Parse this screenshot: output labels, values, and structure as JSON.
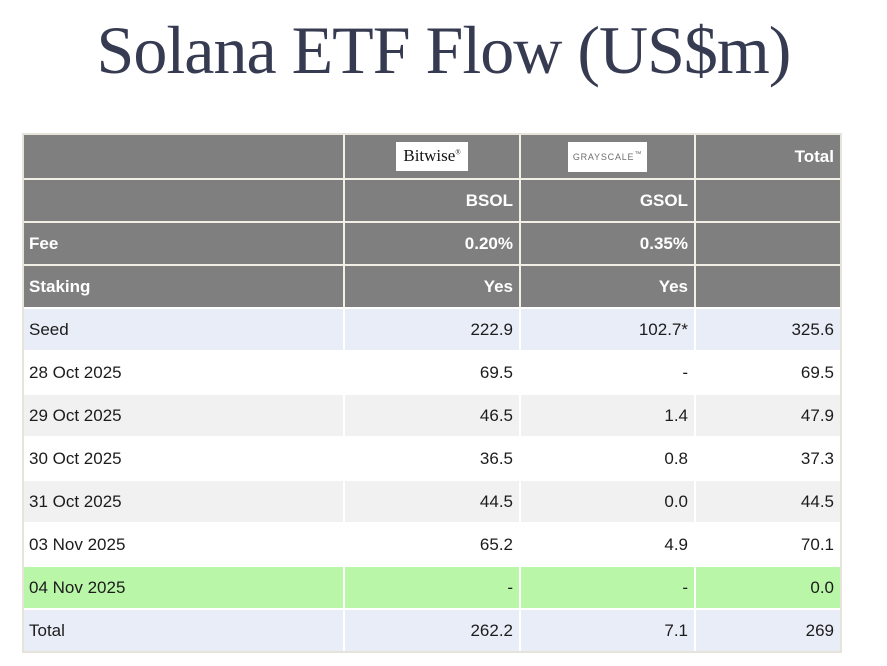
{
  "title": "Solana ETF Flow (US$m)",
  "colors": {
    "title_text": "#363b52",
    "header_bg": "#7f7f7f",
    "header_text": "#ffffff",
    "seed_total_row_bg": "#e9edf8",
    "alt_row_bg": "#f1f1f2",
    "highlight_row_bg": "#b9f6a8",
    "table_border": "#e6e3da",
    "data_text": "#1c1c1c"
  },
  "table": {
    "logos": {
      "bitwise": {
        "label": "Bitwise",
        "mark": "®"
      },
      "grayscale": {
        "label": "GRAYSCALE",
        "mark": "™"
      }
    },
    "header": {
      "total_label": "Total",
      "col2_ticker": "BSOL",
      "col3_ticker": "GSOL",
      "fee_label": "Fee",
      "fee_bsol": "0.20%",
      "fee_gsol": "0.35%",
      "staking_label": "Staking",
      "staking_bsol": "Yes",
      "staking_gsol": "Yes"
    },
    "rows": [
      {
        "label": "Seed",
        "bsol": "222.9",
        "gsol": "102.7*",
        "total": "325.6"
      },
      {
        "label": "28 Oct 2025",
        "bsol": "69.5",
        "gsol": "-",
        "total": "69.5"
      },
      {
        "label": "29 Oct 2025",
        "bsol": "46.5",
        "gsol": "1.4",
        "total": "47.9"
      },
      {
        "label": "30 Oct 2025",
        "bsol": "36.5",
        "gsol": "0.8",
        "total": "37.3"
      },
      {
        "label": "31 Oct 2025",
        "bsol": "44.5",
        "gsol": "0.0",
        "total": "44.5"
      },
      {
        "label": "03 Nov 2025",
        "bsol": "65.2",
        "gsol": "4.9",
        "total": "70.1"
      },
      {
        "label": "04 Nov 2025",
        "bsol": "-",
        "gsol": "-",
        "total": "0.0"
      },
      {
        "label": "Total",
        "bsol": "262.2",
        "gsol": "7.1",
        "total": "269"
      }
    ]
  },
  "chart_data": {
    "type": "table",
    "title": "Solana ETF Flow (US$m)",
    "columns": [
      "",
      "Bitwise BSOL",
      "Grayscale GSOL",
      "Total"
    ],
    "issuers": [
      {
        "issuer": "Bitwise",
        "ticker": "BSOL",
        "fee": "0.20%",
        "staking": "Yes"
      },
      {
        "issuer": "Grayscale",
        "ticker": "GSOL",
        "fee": "0.35%",
        "staking": "Yes"
      }
    ],
    "rows": [
      {
        "label": "Seed",
        "bsol": 222.9,
        "gsol": "102.7*",
        "total": 325.6
      },
      {
        "label": "28 Oct 2025",
        "bsol": 69.5,
        "gsol": null,
        "total": 69.5
      },
      {
        "label": "29 Oct 2025",
        "bsol": 46.5,
        "gsol": 1.4,
        "total": 47.9
      },
      {
        "label": "30 Oct 2025",
        "bsol": 36.5,
        "gsol": 0.8,
        "total": 37.3
      },
      {
        "label": "31 Oct 2025",
        "bsol": 44.5,
        "gsol": 0.0,
        "total": 44.5
      },
      {
        "label": "03 Nov 2025",
        "bsol": 65.2,
        "gsol": 4.9,
        "total": 70.1
      },
      {
        "label": "04 Nov 2025",
        "bsol": null,
        "gsol": null,
        "total": 0.0
      },
      {
        "label": "Total",
        "bsol": 262.2,
        "gsol": 7.1,
        "total": 269
      }
    ],
    "highlighted_row": "04 Nov 2025"
  }
}
